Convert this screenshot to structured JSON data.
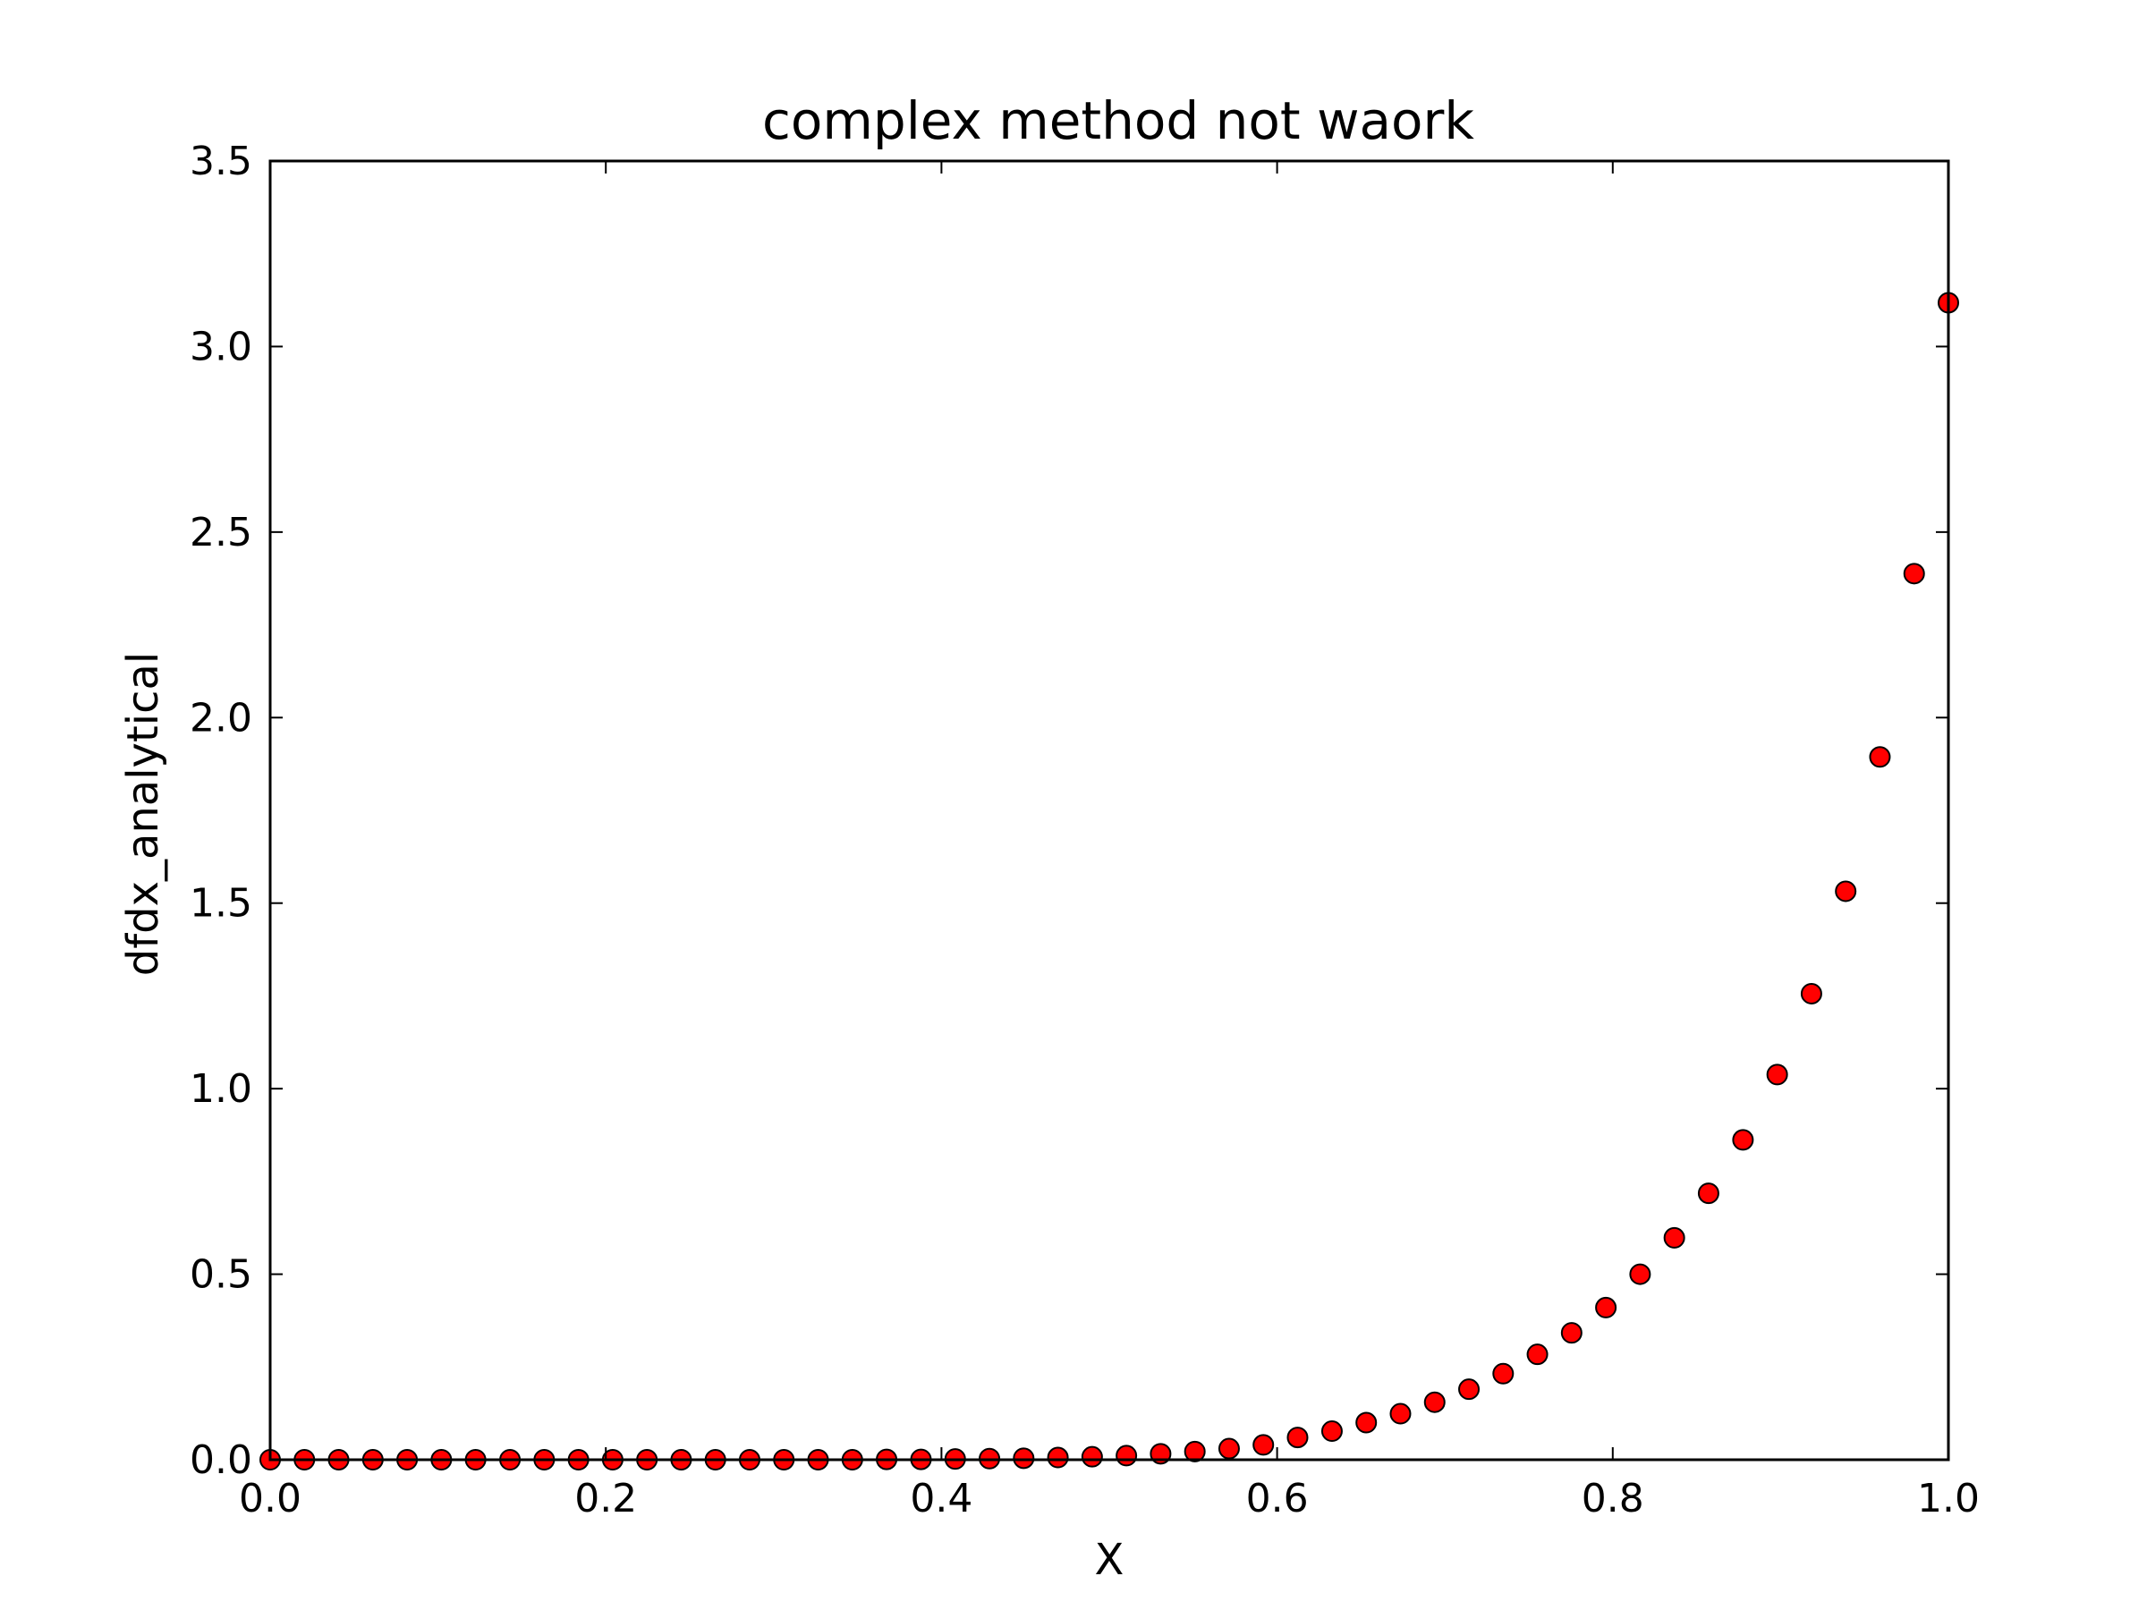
{
  "chart_data": {
    "type": "scatter",
    "title": "complex method not waork",
    "xlabel": "X",
    "ylabel": "dfdx_analytical",
    "xlim": [
      0.0,
      1.0
    ],
    "ylim": [
      0.0,
      3.5
    ],
    "xticks": [
      0.0,
      0.2,
      0.4,
      0.6,
      0.8,
      1.0
    ],
    "xtick_labels": [
      "0.0",
      "0.2",
      "0.4",
      "0.6",
      "0.8",
      "1.0"
    ],
    "yticks": [
      0.0,
      0.5,
      1.0,
      1.5,
      2.0,
      2.5,
      3.0,
      3.5
    ],
    "ytick_labels": [
      "0.0",
      "0.5",
      "1.0",
      "1.5",
      "2.0",
      "2.5",
      "3.0",
      "3.5"
    ],
    "grid": false,
    "legend": "none",
    "marker_color": "#ff0000",
    "marker_edge_color": "#000000",
    "series": [
      {
        "x": [
          0.0,
          0.0204,
          0.0408,
          0.0612,
          0.0816,
          0.102,
          0.1224,
          0.1429,
          0.1633,
          0.1837,
          0.2041,
          0.2245,
          0.2449,
          0.2653,
          0.2857,
          0.3061,
          0.3265,
          0.3469,
          0.3673,
          0.3878,
          0.4082,
          0.4286,
          0.449,
          0.4694,
          0.4898,
          0.5102,
          0.5306,
          0.551,
          0.5714,
          0.5918,
          0.6122,
          0.6327,
          0.6531,
          0.6735,
          0.6939,
          0.7143,
          0.7347,
          0.7551,
          0.7755,
          0.7959,
          0.8163,
          0.8367,
          0.8571,
          0.8776,
          0.898,
          0.9184,
          0.9388,
          0.9592,
          0.9796,
          1.0
        ],
        "y": [
          0.0,
          0.0,
          0.0,
          0.0,
          0.0,
          0.0,
          0.0,
          0.0,
          0.0,
          0.0,
          0.0,
          0.0,
          0.0,
          0.0,
          0.0,
          0.0,
          0.0,
          0.0,
          0.001,
          0.001,
          0.002,
          0.003,
          0.004,
          0.006,
          0.008,
          0.011,
          0.016,
          0.022,
          0.03,
          0.04,
          0.06,
          0.077,
          0.1,
          0.124,
          0.155,
          0.19,
          0.232,
          0.284,
          0.342,
          0.41,
          0.5,
          0.598,
          0.718,
          0.862,
          1.038,
          1.256,
          1.532,
          1.894,
          2.388,
          3.118
        ]
      }
    ]
  }
}
